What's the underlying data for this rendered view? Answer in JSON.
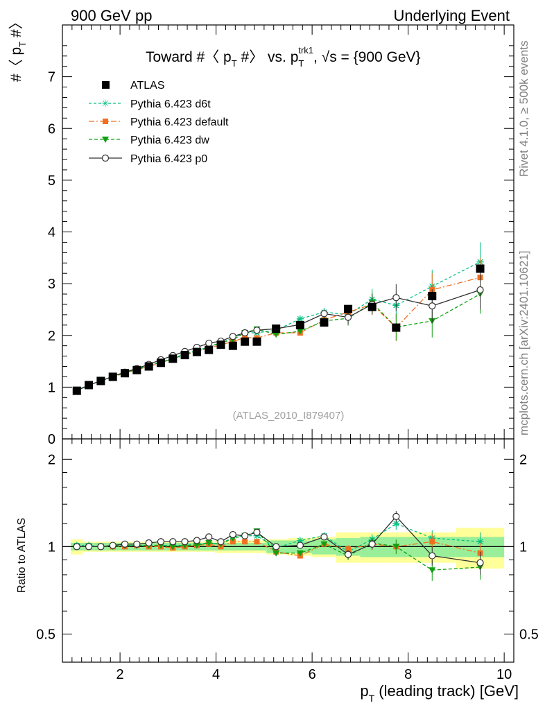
{
  "header": {
    "left": "900 GeV pp",
    "right": "Underlying Event"
  },
  "side_labels": {
    "rivet": "Rivet 4.1.0, ≥ 500k events",
    "mcplots": "mcplots.cern.ch [arXiv:2401.10621]"
  },
  "chart_data": [
    {
      "type": "scatter",
      "title": "Toward #〈 p_T #〉 vs. p_T^trk1, √s = {900 GeV}",
      "title_parts": {
        "a": "Toward #〈 p",
        "b": "T",
        "c": " #〉 vs. p",
        "d": "T",
        "e": "trk1",
        "f": ", √s = {900 GeV}"
      },
      "ylabel": "#〈 p_T #〉",
      "ylabel_parts": {
        "a": "#〈 p",
        "b": "T",
        "c": " #〉"
      },
      "watermark": "(ATLAS_2010_I879407)",
      "xlim": [
        0.8,
        10.2
      ],
      "ylim": [
        0,
        8
      ],
      "yticks": [
        "0",
        "1",
        "2",
        "3",
        "4",
        "5",
        "6",
        "7"
      ],
      "x": [
        1.1,
        1.35,
        1.6,
        1.85,
        2.1,
        2.35,
        2.6,
        2.85,
        3.1,
        3.35,
        3.6,
        3.85,
        4.1,
        4.35,
        4.6,
        4.85,
        5.25,
        5.75,
        6.25,
        6.75,
        7.25,
        7.75,
        8.5,
        9.5
      ],
      "series": [
        {
          "name": "ATLAS",
          "color": "#000000",
          "marker": "square",
          "values": [
            0.93,
            1.04,
            1.12,
            1.2,
            1.27,
            1.33,
            1.4,
            1.47,
            1.55,
            1.62,
            1.68,
            1.72,
            1.82,
            1.8,
            1.88,
            1.88,
            2.13,
            2.2,
            2.25,
            2.51,
            2.55,
            2.15,
            2.76,
            3.29
          ]
        },
        {
          "name": "Pythia 6.423 d6t",
          "color": "#00c080",
          "marker": "star",
          "dash": "4,3",
          "values": [
            0.94,
            1.05,
            1.12,
            1.21,
            1.28,
            1.35,
            1.42,
            1.49,
            1.56,
            1.64,
            1.71,
            1.77,
            1.85,
            1.95,
            2.05,
            2.05,
            2.1,
            2.32,
            2.45,
            2.4,
            2.7,
            2.58,
            2.95,
            3.42
          ]
        },
        {
          "name": "Pythia 6.423 default",
          "color": "#f07020",
          "marker": "square-small",
          "dash": "8,3,2,3",
          "values": [
            0.93,
            1.04,
            1.12,
            1.2,
            1.27,
            1.34,
            1.4,
            1.47,
            1.54,
            1.62,
            1.69,
            1.75,
            1.82,
            1.88,
            1.96,
            1.95,
            2.05,
            2.05,
            2.3,
            2.45,
            2.6,
            2.15,
            2.88,
            3.12
          ]
        },
        {
          "name": "Pythia 6.423 dw",
          "color": "#10a010",
          "marker": "triangle-down",
          "dash": "5,3",
          "values": [
            0.93,
            1.04,
            1.12,
            1.2,
            1.28,
            1.34,
            1.41,
            1.48,
            1.55,
            1.63,
            1.7,
            1.78,
            1.86,
            1.92,
            2.05,
            2.12,
            2.02,
            2.08,
            2.28,
            2.33,
            2.63,
            2.16,
            2.28,
            2.8
          ]
        },
        {
          "name": "Pythia 6.423 p0",
          "color": "#303030",
          "marker": "circle-open",
          "values": [
            0.93,
            1.04,
            1.12,
            1.21,
            1.29,
            1.36,
            1.44,
            1.53,
            1.61,
            1.69,
            1.77,
            1.85,
            1.89,
            1.98,
            2.05,
            2.1,
            2.13,
            2.21,
            2.42,
            2.35,
            2.6,
            2.73,
            2.57,
            2.88
          ]
        }
      ]
    },
    {
      "type": "scatter",
      "ylabel": "Ratio to ATLAS",
      "xlabel": "p_T (leading track) [GeV]",
      "xlabel_parts": {
        "a": "p",
        "b": "T",
        "c": " (leading track) [GeV]"
      },
      "xlim": [
        0.8,
        10.2
      ],
      "ylim": [
        0.4,
        2.35
      ],
      "yscale": "log",
      "xticks": [
        "2",
        "4",
        "6",
        "8",
        "10"
      ],
      "yticks": [
        "0.5",
        "1",
        "2"
      ],
      "band_inner": [
        0.03,
        0.03,
        0.03,
        0.03,
        0.03,
        0.03,
        0.03,
        0.03,
        0.03,
        0.03,
        0.03,
        0.03,
        0.03,
        0.03,
        0.03,
        0.03,
        0.05,
        0.05,
        0.06,
        0.07,
        0.08,
        0.08,
        0.08,
        0.08
      ],
      "band_outer": [
        0.06,
        0.04,
        0.04,
        0.04,
        0.04,
        0.04,
        0.04,
        0.04,
        0.04,
        0.04,
        0.04,
        0.04,
        0.05,
        0.05,
        0.05,
        0.05,
        0.06,
        0.07,
        0.08,
        0.12,
        0.12,
        0.12,
        0.12,
        0.16
      ],
      "series": [
        {
          "name": "Pythia 6.423 d6t",
          "values": [
            1.01,
            1.01,
            1.0,
            1.01,
            1.01,
            1.01,
            1.01,
            1.01,
            1.01,
            1.01,
            1.02,
            1.03,
            1.02,
            1.08,
            1.09,
            1.09,
            0.99,
            1.05,
            1.09,
            0.96,
            1.06,
            1.2,
            1.07,
            1.04
          ]
        },
        {
          "name": "Pythia 6.423 default",
          "values": [
            1.0,
            1.0,
            1.0,
            1.0,
            1.0,
            1.01,
            1.0,
            1.0,
            0.99,
            1.0,
            1.01,
            1.02,
            1.0,
            1.04,
            1.04,
            1.04,
            0.96,
            0.93,
            1.02,
            0.98,
            1.02,
            1.0,
            1.04,
            0.95
          ]
        },
        {
          "name": "Pythia 6.423 dw",
          "values": [
            1.0,
            1.0,
            1.0,
            1.0,
            1.01,
            1.01,
            1.01,
            1.01,
            1.0,
            1.01,
            1.01,
            1.03,
            1.02,
            1.07,
            1.09,
            1.13,
            0.95,
            0.95,
            1.02,
            0.93,
            1.03,
            1.0,
            0.83,
            0.85
          ]
        },
        {
          "name": "Pythia 6.423 p0",
          "values": [
            1.0,
            1.0,
            1.0,
            1.01,
            1.02,
            1.02,
            1.03,
            1.04,
            1.04,
            1.04,
            1.05,
            1.08,
            1.04,
            1.1,
            1.09,
            1.12,
            1.0,
            1.01,
            1.08,
            0.94,
            1.02,
            1.27,
            0.93,
            0.88
          ]
        }
      ]
    }
  ]
}
